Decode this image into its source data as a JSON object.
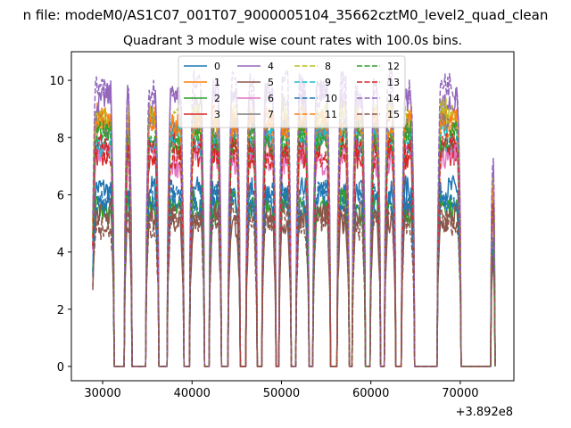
{
  "chart_data": {
    "type": "line",
    "suptitle": "n file: modeM0/AS1C07_001T07_9000005104_35662cztM0_level2_quad_clean",
    "title": "Quadrant 3 module wise count rates with 100.0s bins.",
    "xlabel": "",
    "ylabel": "",
    "x_offset_label": "+3.892e8",
    "xlim": [
      26500,
      76000
    ],
    "ylim": [
      -0.5,
      11.0
    ],
    "xticks": [
      30000,
      40000,
      50000,
      60000,
      70000
    ],
    "xtick_labels": [
      "30000",
      "40000",
      "50000",
      "60000",
      "70000"
    ],
    "yticks": [
      0,
      2,
      4,
      6,
      8,
      10
    ],
    "ytick_labels": [
      "0",
      "2",
      "4",
      "6",
      "8",
      "10"
    ],
    "grid": false,
    "legend_placement": "top-center",
    "legend_columns": 4,
    "active_intervals": [
      [
        28900,
        31200
      ],
      [
        32500,
        33200
      ],
      [
        34900,
        36200
      ],
      [
        37300,
        39000
      ],
      [
        39800,
        41300
      ],
      [
        42000,
        43200
      ],
      [
        44100,
        45300
      ],
      [
        46100,
        47200
      ],
      [
        47900,
        49300
      ],
      [
        49800,
        51000
      ],
      [
        51700,
        53000
      ],
      [
        53600,
        55400
      ],
      [
        56300,
        57500
      ],
      [
        58000,
        59300
      ],
      [
        60000,
        61000
      ],
      [
        61600,
        62700
      ],
      [
        63500,
        64800
      ],
      [
        67500,
        70000
      ],
      [
        73500,
        73800
      ]
    ],
    "series": [
      {
        "name": "0",
        "level": 6.0,
        "color": "#1f77b4",
        "dash": "solid"
      },
      {
        "name": "1",
        "level": 8.6,
        "color": "#ff7f0e",
        "dash": "solid"
      },
      {
        "name": "2",
        "level": 5.6,
        "color": "#2ca02c",
        "dash": "solid"
      },
      {
        "name": "3",
        "level": 7.6,
        "color": "#d62728",
        "dash": "solid"
      },
      {
        "name": "4",
        "level": 9.4,
        "color": "#9467bd",
        "dash": "solid"
      },
      {
        "name": "5",
        "level": 5.2,
        "color": "#8c564b",
        "dash": "solid"
      },
      {
        "name": "6",
        "level": 7.3,
        "color": "#e377c2",
        "dash": "solid"
      },
      {
        "name": "7",
        "level": 8.3,
        "color": "#7f7f7f",
        "dash": "solid"
      },
      {
        "name": "8",
        "level": 8.8,
        "color": "#bcbd22",
        "dash": "dashed"
      },
      {
        "name": "9",
        "level": 8.0,
        "color": "#17becf",
        "dash": "dashed"
      },
      {
        "name": "10",
        "level": 5.9,
        "color": "#1f77b4",
        "dash": "dashed"
      },
      {
        "name": "11",
        "level": 8.5,
        "color": "#ff7f0e",
        "dash": "dashed"
      },
      {
        "name": "12",
        "level": 7.9,
        "color": "#2ca02c",
        "dash": "dashed"
      },
      {
        "name": "13",
        "level": 7.5,
        "color": "#d62728",
        "dash": "dashed"
      },
      {
        "name": "14",
        "level": 9.7,
        "color": "#9467bd",
        "dash": "dashed"
      },
      {
        "name": "15",
        "level": 5.1,
        "color": "#8c564b",
        "dash": "dashed"
      }
    ]
  }
}
